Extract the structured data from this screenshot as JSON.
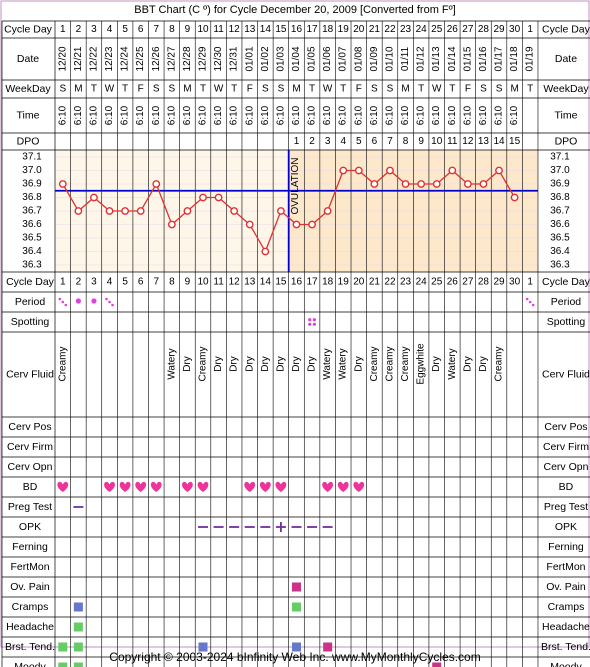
{
  "header_title": "BBT Chart (C º) for Cycle December 20, 2009  [Converted from Fº]",
  "footer_text": "Copyright © 2003-2024 bInfinity Web Inc.    www.MyMonthlyCycles.com",
  "colors": {
    "border": "#c090c0",
    "temp_line": "#e03030",
    "cover_line": "#0000cc",
    "phase_post": "#fde8cc",
    "phase_pre": "#fff6ea",
    "period": "#e040e0",
    "purple": "#7030a0",
    "heart": "#ee3399",
    "blue_sq": "#6677cc",
    "green_sq": "#66cc66",
    "magenta_sq": "#cc3388"
  },
  "row_labels": {
    "cycle_day": "Cycle Day",
    "date": "Date",
    "weekday": "WeekDay",
    "time": "Time",
    "dpo": "DPO",
    "period": "Period",
    "spotting": "Spotting",
    "cerv_fluid": "Cerv Fluid",
    "cerv_pos": "Cerv Pos",
    "cerv_firm": "Cerv Firm",
    "cerv_opn": "Cerv Opn",
    "bd": "BD",
    "preg_test": "Preg Test",
    "opk": "OPK",
    "ferning": "Ferning",
    "fertmon": "FertMon",
    "ov_pain": "Ov. Pain",
    "cramps": "Cramps",
    "headache": "Headache",
    "brst_tend": "Brst. Tend.",
    "moody": "Moody"
  },
  "cycle_days": [
    "1",
    "2",
    "3",
    "4",
    "5",
    "6",
    "7",
    "8",
    "9",
    "10",
    "11",
    "12",
    "13",
    "14",
    "15",
    "16",
    "17",
    "18",
    "19",
    "20",
    "21",
    "22",
    "23",
    "24",
    "25",
    "26",
    "27",
    "28",
    "29",
    "30",
    "1"
  ],
  "dates": [
    "12/20",
    "12/21",
    "12/22",
    "12/23",
    "12/24",
    "12/25",
    "12/26",
    "12/27",
    "12/28",
    "12/29",
    "12/30",
    "12/31",
    "01/01",
    "01/02",
    "01/03",
    "01/04",
    "01/05",
    "01/06",
    "01/07",
    "01/08",
    "01/09",
    "01/10",
    "01/11",
    "01/12",
    "01/13",
    "01/14",
    "01/15",
    "01/16",
    "01/17",
    "01/18",
    "01/19"
  ],
  "weekdays": [
    "S",
    "M",
    "T",
    "W",
    "T",
    "F",
    "S",
    "S",
    "M",
    "T",
    "W",
    "T",
    "F",
    "S",
    "S",
    "M",
    "T",
    "W",
    "T",
    "F",
    "S",
    "S",
    "M",
    "T",
    "W",
    "T",
    "F",
    "S",
    "S",
    "M",
    "T"
  ],
  "times": [
    "6:10",
    "6:10",
    "6:10",
    "6:10",
    "6:10",
    "6:10",
    "6:10",
    "6:10",
    "6:10",
    "6:10",
    "6:10",
    "6:10",
    "6:10",
    "6:10",
    "6:10",
    "6:10",
    "6:10",
    "6:10",
    "6:10",
    "6:10",
    "6:10",
    "6:10",
    "6:10",
    "6:10",
    "6:10",
    "6:10",
    "6:10",
    "6:10",
    "6:10",
    "6:10",
    ""
  ],
  "dpo": [
    "",
    "",
    "",
    "",
    "",
    "",
    "",
    "",
    "",
    "",
    "",
    "",
    "",
    "",
    "",
    "1",
    "2",
    "3",
    "4",
    "5",
    "6",
    "7",
    "8",
    "9",
    "10",
    "11",
    "12",
    "13",
    "14",
    "15",
    ""
  ],
  "ovulation_label": "OVULATION",
  "cerv_fluid": [
    "Creamy",
    "",
    "",
    "",
    "",
    "",
    "",
    "Watery",
    "Dry",
    "Creamy",
    "Dry",
    "Dry",
    "Dry",
    "Dry",
    "Dry",
    "Dry",
    "Dry",
    "Watery",
    "Watery",
    "Dry",
    "Creamy",
    "Creamy",
    "Creamy",
    "Eggwhite",
    "Dry",
    "Watery",
    "Dry",
    "Dry",
    "Creamy",
    "",
    ""
  ],
  "bd": [
    true,
    false,
    false,
    true,
    true,
    true,
    true,
    false,
    true,
    true,
    false,
    false,
    true,
    true,
    true,
    false,
    false,
    true,
    true,
    true,
    false,
    false,
    false,
    false,
    false,
    false,
    false,
    false,
    false,
    false,
    false
  ],
  "marks": {
    "period": [
      1,
      2,
      3,
      4,
      31
    ],
    "spotting": [
      17
    ],
    "preg_test": [
      2
    ],
    "opk_dashes": [
      10,
      11,
      12,
      13,
      14,
      16,
      17,
      18
    ],
    "opk_positive": [
      15
    ],
    "ov_pain": [
      16
    ],
    "cramps": [
      {
        "day": 2,
        "c": "blue_sq"
      },
      {
        "day": 16,
        "c": "green_sq"
      }
    ],
    "headache": [
      {
        "day": 2,
        "c": "green_sq"
      }
    ],
    "brst_tend": [
      {
        "day": 1,
        "c": "green_sq"
      },
      {
        "day": 2,
        "c": "green_sq"
      },
      {
        "day": 10,
        "c": "blue_sq"
      },
      {
        "day": 16,
        "c": "blue_sq"
      },
      {
        "day": 18,
        "c": "magenta_sq"
      }
    ],
    "moody": [
      {
        "day": 1,
        "c": "green_sq"
      },
      {
        "day": 2,
        "c": "green_sq"
      },
      {
        "day": 25,
        "c": "magenta_sq"
      }
    ]
  },
  "chart_data": {
    "type": "line",
    "title": "BBT Chart (C º) for Cycle December 20, 2009  [Converted from Fº]",
    "xlabel": "Cycle Day",
    "ylabel": "",
    "ylim": [
      36.3,
      37.1
    ],
    "y_ticks": [
      "37.1",
      "37.0",
      "36.9",
      "36.8",
      "36.7",
      "36.6",
      "36.5",
      "36.4",
      "36.3"
    ],
    "x": [
      1,
      2,
      3,
      4,
      5,
      6,
      7,
      8,
      9,
      10,
      11,
      12,
      13,
      14,
      15,
      16,
      17,
      18,
      19,
      20,
      21,
      22,
      23,
      24,
      25,
      26,
      27,
      28,
      29,
      30
    ],
    "series": [
      {
        "values": [
          36.9,
          36.7,
          36.8,
          36.7,
          36.7,
          36.7,
          36.9,
          36.6,
          36.7,
          36.8,
          36.8,
          36.7,
          36.6,
          36.4,
          36.7,
          36.6,
          36.6,
          36.7,
          37.0,
          37.0,
          36.9,
          37.0,
          36.9,
          36.9,
          36.9,
          37.0,
          36.9,
          36.9,
          37.0,
          36.8
        ]
      }
    ],
    "coverline": 36.85,
    "ovulation_day": 15,
    "grid": true
  }
}
